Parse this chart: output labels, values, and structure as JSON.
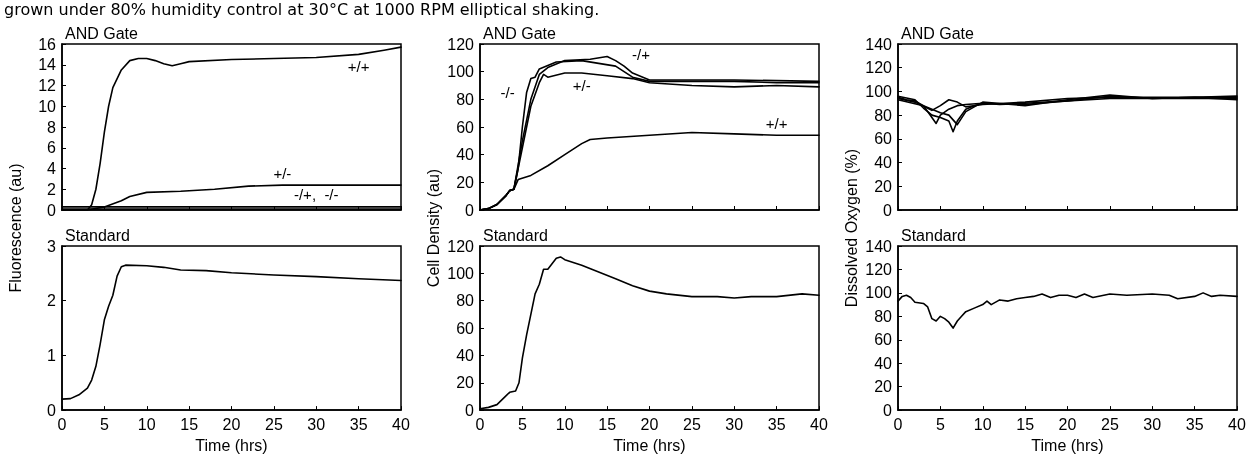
{
  "chart_data": [
    {
      "type": "line",
      "title": "AND Gate",
      "ylabel": "Fluorescence (au)",
      "xlim": [
        0,
        40
      ],
      "xticks": [
        0,
        5,
        10,
        15,
        20,
        25,
        30,
        35,
        40
      ],
      "ylim": [
        0,
        16
      ],
      "yticks": [
        0,
        2,
        4,
        6,
        8,
        10,
        12,
        14,
        16
      ],
      "tick_labels": "y",
      "marker": "none",
      "line_style": "solid",
      "annotations": [
        "grown under 80% humidity control at 30°C at 1000 RPM elliptical shaking.",
        {
          "text": "+/+",
          "x": 35,
          "y": 15
        },
        {
          "text": "+/-",
          "x": 26,
          "y": 2.4
        },
        {
          "text": "-/+,  -/-",
          "x": 30,
          "y": 0.3
        }
      ],
      "series": [
        {
          "color": "#000000",
          "x": [
            0,
            3,
            3.5,
            4,
            4.5,
            5,
            5.5,
            6,
            7,
            8,
            9,
            10,
            11,
            12,
            13,
            14,
            15,
            20,
            25,
            30,
            35,
            38,
            40
          ],
          "values": [
            0,
            0,
            0.5,
            2,
            4.5,
            7.5,
            10,
            11.8,
            13.5,
            14.4,
            14.6,
            14.6,
            14.4,
            14.1,
            13.9,
            14.1,
            14.3,
            14.5,
            14.6,
            14.7,
            15,
            15.4,
            15.7
          ]
        },
        {
          "color": "#000000",
          "x": [
            0,
            3,
            5,
            7,
            8,
            10,
            14,
            18,
            22,
            26,
            30,
            40
          ],
          "values": [
            0,
            0,
            0.3,
            0.9,
            1.3,
            1.7,
            1.8,
            2,
            2.3,
            2.4,
            2.4,
            2.4
          ]
        },
        {
          "color": "#000000",
          "x": [
            0,
            10,
            20,
            30,
            40
          ],
          "values": [
            0.3,
            0.3,
            0.3,
            0.3,
            0.3
          ]
        },
        {
          "color": "#000000",
          "x": [
            0,
            10,
            20,
            30,
            40
          ],
          "values": [
            0.1,
            0.1,
            0.1,
            0.1,
            0.1
          ]
        }
      ]
    },
    {
      "type": "line",
      "title": "AND Gate",
      "ylabel": "Cell Density (au)",
      "xlim": [
        0,
        40
      ],
      "xticks": [
        0,
        5,
        10,
        15,
        20,
        25,
        30,
        35,
        40
      ],
      "ylim": [
        0,
        120
      ],
      "yticks": [
        0,
        20,
        40,
        60,
        80,
        100,
        120
      ],
      "tick_labels": "y",
      "marker": "none",
      "line_style": "solid",
      "annotations": [
        {
          "text": "-/+",
          "x": 17,
          "y": 104
        },
        {
          "text": "-/-",
          "x": 5.5,
          "y": 85
        },
        {
          "text": "+/-",
          "x": 12,
          "y": 99
        },
        {
          "text": "+/+",
          "x": 35,
          "y": 54
        }
      ],
      "series": [
        {
          "color": "#000000",
          "x": [
            0,
            1,
            2,
            3,
            3.5,
            4,
            4.5,
            5,
            5.5,
            6,
            6.5,
            7,
            9,
            12,
            14,
            16,
            18,
            20,
            25,
            30,
            35,
            40
          ],
          "values": [
            0,
            1,
            4,
            10,
            14,
            15,
            30,
            60,
            85,
            95,
            96,
            102,
            107,
            108,
            106,
            104,
            96,
            93,
            93,
            93,
            92,
            92
          ]
        },
        {
          "color": "#000000",
          "x": [
            0,
            1,
            2,
            3,
            3.5,
            4,
            5,
            6,
            7,
            8,
            10,
            13,
            15,
            16,
            17,
            18,
            20,
            25,
            30,
            40
          ],
          "values": [
            0,
            1,
            4,
            10,
            14,
            15,
            50,
            80,
            98,
            103,
            108,
            109,
            111,
            108,
            104,
            99,
            94,
            94,
            94,
            93
          ]
        },
        {
          "color": "#000000",
          "x": [
            0,
            1,
            2,
            3,
            3.5,
            4,
            5,
            6,
            7,
            7.5,
            8,
            10,
            12,
            15,
            18,
            20,
            25,
            30,
            35,
            40
          ],
          "values": [
            0,
            1,
            4,
            10,
            14,
            15,
            45,
            75,
            92,
            98,
            96,
            99,
            99,
            97,
            95,
            92,
            90,
            89,
            90,
            89
          ]
        },
        {
          "color": "#000000",
          "x": [
            0,
            1,
            2,
            3,
            3.5,
            4,
            4.5,
            6,
            8,
            10,
            12,
            13,
            15,
            20,
            25,
            30,
            35,
            40
          ],
          "values": [
            0,
            1,
            4,
            10,
            14,
            15,
            22,
            25,
            32,
            40,
            48,
            51,
            52,
            54,
            56,
            55,
            54,
            54
          ]
        }
      ]
    },
    {
      "type": "line",
      "title": "AND Gate",
      "ylabel": "Dissolved Oxygen (%)",
      "xlim": [
        0,
        40
      ],
      "xticks": [
        0,
        5,
        10,
        15,
        20,
        25,
        30,
        35,
        40
      ],
      "ylim": [
        0,
        140
      ],
      "yticks": [
        0,
        20,
        40,
        60,
        80,
        100,
        120,
        140
      ],
      "tick_labels": "y",
      "marker": "none",
      "line_style": "solid",
      "series": [
        {
          "color": "#000000",
          "x": [
            0,
            1,
            2,
            3,
            4,
            4.5,
            5,
            6,
            7,
            8,
            10,
            12,
            15,
            20,
            25,
            30,
            35,
            40
          ],
          "values": [
            95,
            93,
            92,
            88,
            78,
            73,
            80,
            85,
            88,
            89,
            90,
            89,
            90,
            92,
            94,
            94,
            94,
            94
          ]
        },
        {
          "color": "#000000",
          "x": [
            0,
            2,
            3,
            4,
            5,
            6,
            6.5,
            7,
            8,
            9,
            10,
            15,
            20,
            25,
            30,
            35,
            40
          ],
          "values": [
            96,
            93,
            86,
            80,
            78,
            75,
            66,
            75,
            85,
            88,
            90,
            89,
            92,
            96,
            94,
            95,
            93
          ]
        },
        {
          "color": "#000000",
          "x": [
            0,
            2,
            4,
            5,
            6,
            7,
            8,
            10,
            15,
            20,
            25,
            30,
            40
          ],
          "values": [
            94,
            91,
            84,
            88,
            93,
            91,
            87,
            89,
            91,
            94,
            95,
            95,
            95
          ]
        },
        {
          "color": "#000000",
          "x": [
            0,
            3,
            5,
            6,
            7,
            8,
            9,
            10,
            15,
            20,
            25,
            30,
            40
          ],
          "values": [
            93,
            88,
            82,
            80,
            72,
            83,
            87,
            91,
            88,
            93,
            97,
            94,
            96
          ]
        }
      ]
    },
    {
      "type": "line",
      "title": "Standard",
      "xlabel": "Time (hrs)",
      "xlim": [
        0,
        40
      ],
      "xticks": [
        0,
        5,
        10,
        15,
        20,
        25,
        30,
        35,
        40
      ],
      "ylim": [
        0,
        3
      ],
      "yticks": [
        0,
        1,
        2,
        3
      ],
      "marker": "none",
      "line_style": "solid",
      "series": [
        {
          "color": "#000000",
          "x": [
            0,
            1,
            2,
            3,
            3.5,
            4,
            4.5,
            5,
            5.5,
            6,
            6.5,
            7,
            7.5,
            10,
            12,
            14,
            17,
            20,
            25,
            30,
            35,
            40
          ],
          "values": [
            0.2,
            0.21,
            0.28,
            0.4,
            0.55,
            0.8,
            1.2,
            1.65,
            1.9,
            2.1,
            2.45,
            2.62,
            2.65,
            2.64,
            2.61,
            2.56,
            2.55,
            2.51,
            2.47,
            2.44,
            2.4,
            2.37
          ]
        }
      ]
    },
    {
      "type": "line",
      "title": "Standard",
      "xlabel": "Time (hrs)",
      "xlim": [
        0,
        40
      ],
      "xticks": [
        0,
        5,
        10,
        15,
        20,
        25,
        30,
        35,
        40
      ],
      "ylim": [
        0,
        120
      ],
      "yticks": [
        0,
        20,
        40,
        60,
        80,
        100,
        120
      ],
      "marker": "none",
      "line_style": "solid",
      "series": [
        {
          "color": "#000000",
          "x": [
            0,
            1,
            2,
            3,
            3.5,
            4.2,
            4.6,
            5,
            5.5,
            6,
            6.5,
            7,
            7.5,
            8,
            8.5,
            9,
            9.5,
            10,
            12,
            14,
            16,
            18,
            20,
            22,
            25,
            28,
            30,
            32,
            35,
            38,
            40
          ],
          "values": [
            1,
            2,
            4,
            10,
            13,
            14,
            20,
            38,
            55,
            70,
            85,
            92,
            103,
            103,
            107,
            111,
            112,
            110,
            106,
            101,
            96,
            91,
            87,
            85,
            83,
            83,
            82,
            83,
            83,
            85,
            84
          ]
        }
      ]
    },
    {
      "type": "line",
      "title": "Standard",
      "xlabel": "Time (hrs)",
      "xlim": [
        0,
        40
      ],
      "xticks": [
        0,
        5,
        10,
        15,
        20,
        25,
        30,
        35,
        40
      ],
      "ylim": [
        0,
        140
      ],
      "yticks": [
        0,
        20,
        40,
        60,
        80,
        100,
        120,
        140
      ],
      "marker": "none",
      "line_style": "solid",
      "series": [
        {
          "color": "#000000",
          "x": [
            0,
            0.5,
            1,
            1.5,
            2,
            3,
            3.5,
            4,
            4.5,
            5,
            5.5,
            6,
            6.5,
            7,
            7.5,
            8,
            9,
            10,
            10.5,
            11,
            12,
            13,
            14,
            15,
            16,
            17,
            18,
            19,
            20,
            21,
            22,
            23,
            25,
            27,
            30,
            32,
            33,
            35,
            36,
            37,
            38,
            40
          ],
          "values": [
            93,
            97,
            98,
            96,
            92,
            91,
            88,
            78,
            76,
            80,
            78,
            75,
            70,
            76,
            80,
            84,
            87,
            90,
            93,
            90,
            94,
            93,
            95,
            96,
            97,
            99,
            96,
            98,
            98,
            96,
            99,
            96,
            99,
            98,
            99,
            98,
            95,
            97,
            100,
            97,
            98,
            97
          ]
        }
      ]
    }
  ]
}
